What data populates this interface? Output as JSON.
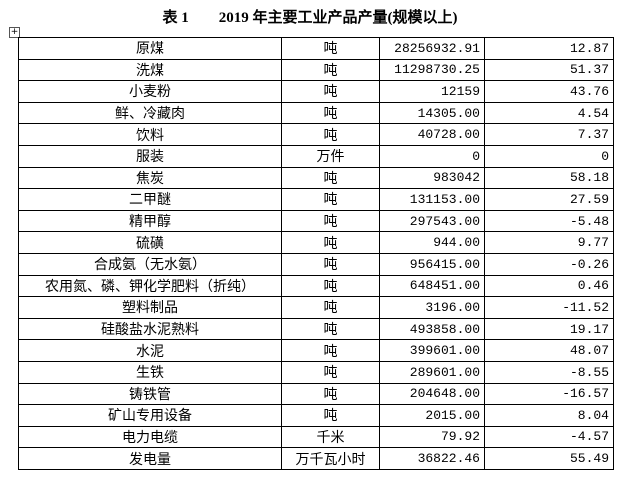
{
  "header": {
    "title": "表 1　　2019 年主要工业产品产量(规模以上)"
  },
  "table": {
    "rows": [
      [
        "原煤",
        "吨",
        "28256932.91",
        "12.87"
      ],
      [
        "洗煤",
        "吨",
        "11298730.25",
        "51.37"
      ],
      [
        "小麦粉",
        "吨",
        "12159",
        "43.76"
      ],
      [
        "鲜、冷藏肉",
        "吨",
        "14305.00",
        "4.54"
      ],
      [
        "饮料",
        "吨",
        "40728.00",
        "7.37"
      ],
      [
        "服装",
        "万件",
        "0",
        "0"
      ],
      [
        "焦炭",
        "吨",
        "983042",
        "58.18"
      ],
      [
        "二甲醚",
        "吨",
        "131153.00",
        "27.59"
      ],
      [
        "精甲醇",
        "吨",
        "297543.00",
        "-5.48"
      ],
      [
        "硫磺",
        "吨",
        "944.00",
        "9.77"
      ],
      [
        "合成氨（无水氨）",
        "吨",
        "956415.00",
        "-0.26"
      ],
      [
        "农用氮、磷、钾化学肥料（折纯）",
        "吨",
        "648451.00",
        "0.46"
      ],
      [
        "塑料制品",
        "吨",
        "3196.00",
        "-11.52"
      ],
      [
        "硅酸盐水泥熟料",
        "吨",
        "493858.00",
        "19.17"
      ],
      [
        "水泥",
        "吨",
        "399601.00",
        "48.07"
      ],
      [
        "生铁",
        "吨",
        "289601.00",
        "-8.55"
      ],
      [
        "铸铁管",
        "吨",
        "204648.00",
        "-16.57"
      ],
      [
        "矿山专用设备",
        "吨",
        "2015.00",
        "8.04"
      ],
      [
        "电力电缆",
        "千米",
        "79.92",
        "-4.57"
      ],
      [
        "发电量",
        "万千瓦小时",
        "36822.46",
        "55.49"
      ]
    ]
  }
}
